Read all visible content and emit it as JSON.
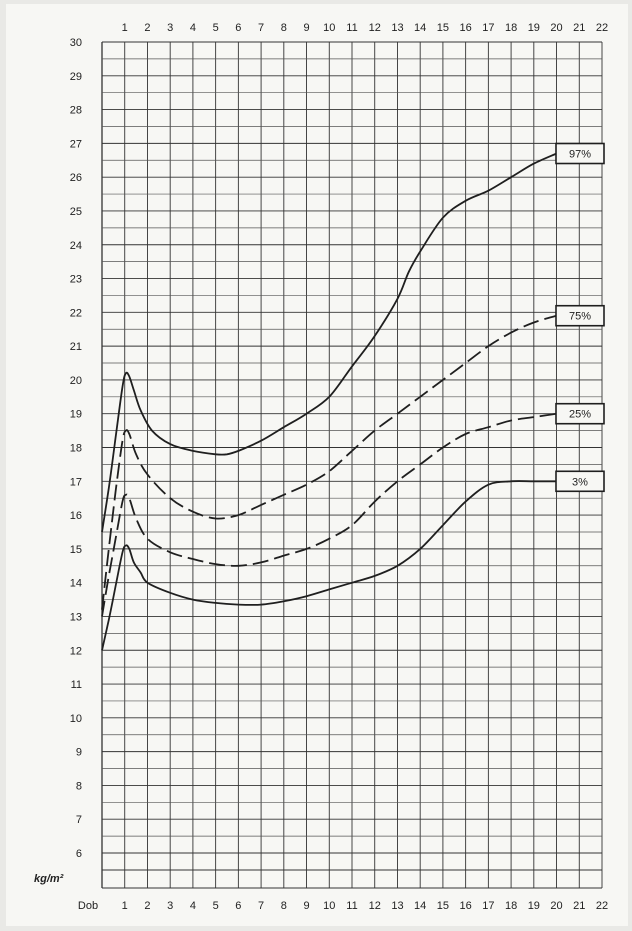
{
  "chart_data": {
    "type": "line",
    "title": "",
    "xlabel": "",
    "ylabel": "kg/m²",
    "y_unit_label": "kg/m²",
    "x_origin_label": "Dob",
    "xlim": [
      0,
      22
    ],
    "ylim": [
      6,
      30
    ],
    "grid": true,
    "x_ticks_top": [
      "1",
      "2",
      "3",
      "4",
      "5",
      "6",
      "7",
      "8",
      "9",
      "10",
      "11",
      "12",
      "13",
      "14",
      "15",
      "16",
      "17",
      "18",
      "19",
      "20",
      "21",
      "22"
    ],
    "x_ticks_bottom": [
      "1",
      "2",
      "3",
      "4",
      "5",
      "6",
      "7",
      "8",
      "9",
      "10",
      "11",
      "12",
      "13",
      "14",
      "15",
      "16",
      "17",
      "18",
      "19",
      "20",
      "21",
      "22"
    ],
    "y_ticks": [
      "6",
      "7",
      "8",
      "9",
      "10",
      "11",
      "12",
      "13",
      "14",
      "15",
      "16",
      "17",
      "18",
      "19",
      "20",
      "21",
      "22",
      "23",
      "24",
      "25",
      "26",
      "27",
      "28",
      "29",
      "30"
    ],
    "series": [
      {
        "name": "97%",
        "dash": false,
        "x": [
          0,
          0.3,
          0.6,
          0.9,
          1.05,
          1.2,
          1.4,
          1.7,
          2.2,
          3,
          4,
          5,
          5.5,
          6,
          7,
          8,
          9,
          10,
          11,
          12,
          13,
          13.5,
          14,
          15,
          16,
          17,
          18,
          19,
          20
        ],
        "y": [
          15.5,
          16.8,
          18.3,
          19.8,
          20.2,
          20.1,
          19.7,
          19.1,
          18.5,
          18.1,
          17.9,
          17.8,
          17.8,
          17.9,
          18.2,
          18.6,
          19.0,
          19.5,
          20.4,
          21.3,
          22.4,
          23.2,
          23.8,
          24.8,
          25.3,
          25.6,
          26.0,
          26.4,
          26.7
        ]
      },
      {
        "name": "75%",
        "dash": true,
        "x": [
          0,
          0.3,
          0.6,
          0.9,
          1.05,
          1.2,
          1.5,
          2,
          3,
          4,
          5,
          6,
          7,
          8,
          9,
          10,
          11,
          12,
          13,
          14,
          15,
          16,
          17,
          18,
          19,
          20
        ],
        "y": [
          13.2,
          15.0,
          16.7,
          18.2,
          18.5,
          18.4,
          17.8,
          17.2,
          16.5,
          16.1,
          15.9,
          16.0,
          16.3,
          16.6,
          16.9,
          17.3,
          17.9,
          18.5,
          19.0,
          19.5,
          20.0,
          20.5,
          21.0,
          21.4,
          21.7,
          21.9
        ]
      },
      {
        "name": "25%",
        "dash": true,
        "x": [
          0,
          0.3,
          0.6,
          0.9,
          1.05,
          1.2,
          1.5,
          2,
          3,
          4,
          5,
          6,
          7,
          8,
          9,
          10,
          11,
          12,
          13,
          14,
          15,
          16,
          17,
          18,
          19,
          20
        ],
        "y": [
          13.0,
          14.2,
          15.3,
          16.4,
          16.6,
          16.5,
          15.9,
          15.3,
          14.9,
          14.7,
          14.55,
          14.5,
          14.6,
          14.8,
          15.0,
          15.3,
          15.7,
          16.4,
          17.0,
          17.5,
          18.0,
          18.4,
          18.6,
          18.8,
          18.9,
          19.0
        ]
      },
      {
        "name": "3%",
        "dash": false,
        "x": [
          0,
          0.3,
          0.6,
          0.9,
          1.05,
          1.2,
          1.4,
          1.7,
          2,
          3,
          4,
          5,
          6,
          7,
          8,
          9,
          10,
          11,
          12,
          13,
          14,
          15,
          16,
          17,
          18,
          19,
          20
        ],
        "y": [
          12.0,
          12.9,
          13.9,
          14.9,
          15.1,
          15.0,
          14.6,
          14.3,
          14.0,
          13.7,
          13.5,
          13.4,
          13.35,
          13.35,
          13.45,
          13.6,
          13.8,
          14.0,
          14.2,
          14.5,
          15.0,
          15.7,
          16.4,
          16.9,
          17.0,
          17.0,
          17.0
        ]
      }
    ]
  }
}
